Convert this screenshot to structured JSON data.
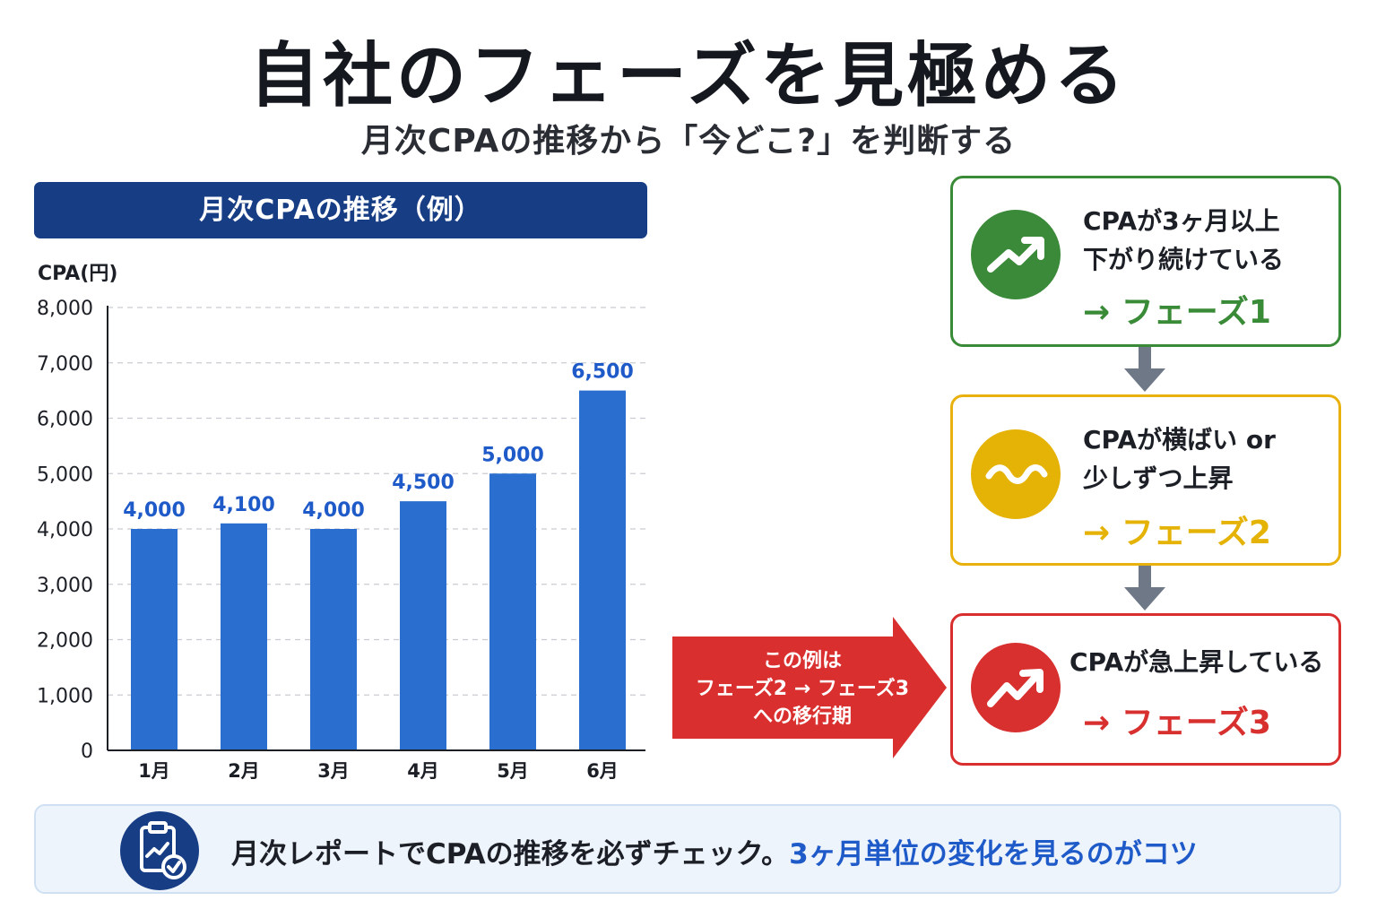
{
  "title": "自社のフェーズを見極める",
  "subtitle": "月次CPAの推移から「今どこ?」を判断する",
  "chart_header": "月次CPAの推移（例）",
  "chart_data": {
    "type": "bar",
    "title": "月次CPAの推移（例）",
    "ylabel": "CPA(円)",
    "xlabel": "",
    "categories": [
      "1月",
      "2月",
      "3月",
      "4月",
      "5月",
      "6月"
    ],
    "values": [
      4000,
      4100,
      4000,
      4500,
      5000,
      6500
    ],
    "value_labels": [
      "4,000",
      "4,100",
      "4,000",
      "4,500",
      "5,000",
      "6,500"
    ],
    "y_ticks": [
      "0",
      "1,000",
      "2,000",
      "3,000",
      "4,000",
      "5,000",
      "6,000",
      "7,000",
      "8,000"
    ],
    "ylim": [
      0,
      8000
    ],
    "grid": true,
    "bar_color": "#2a6fd0",
    "label_color": "#1f5ac9"
  },
  "phases": [
    {
      "lines": [
        "CPAが3ヶ月以上",
        "下がり続けている"
      ],
      "result": "→ フェーズ1",
      "icon": "trend-up-icon",
      "color": "#3a8b37"
    },
    {
      "lines": [
        "CPAが横ばい or",
        "少しずつ上昇"
      ],
      "result": "→ フェーズ2",
      "icon": "wave-icon",
      "color": "#e5b206"
    },
    {
      "lines": [
        "CPAが急上昇している"
      ],
      "result": "→ フェーズ3",
      "icon": "trend-up-icon",
      "color": "#d7302f"
    }
  ],
  "callout": {
    "lines": [
      "この例は",
      "フェーズ2 → フェーズ3",
      "への移行期"
    ],
    "color": "#d9302f"
  },
  "footer": {
    "text": "月次レポートでCPAの推移を必ずチェック。",
    "highlight": "3ヶ月単位の変化を見るのがコツ",
    "icon": "clipboard-chart-icon"
  }
}
